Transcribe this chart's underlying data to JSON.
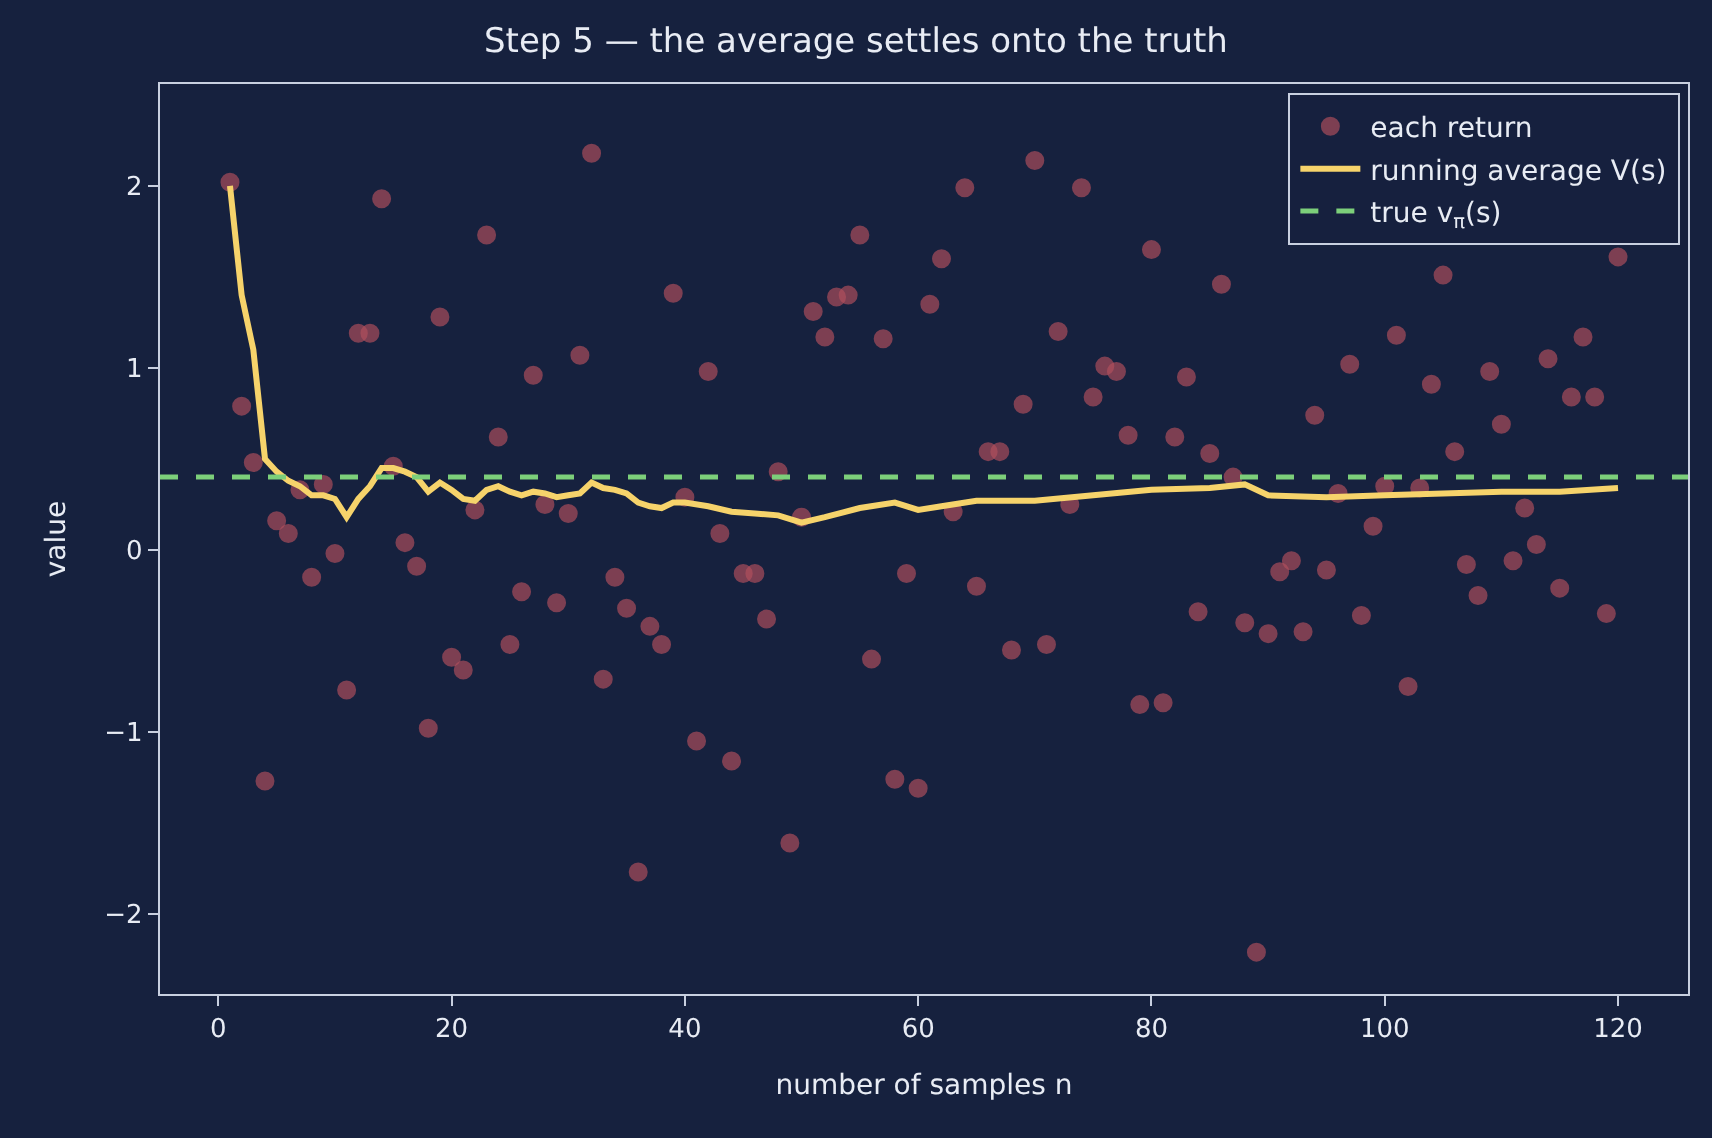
{
  "chart_data": {
    "type": "scatter",
    "title": "Step 5 — the average settles onto the truth",
    "xlabel": "number of samples n",
    "ylabel": "value",
    "xlim": [
      -5,
      126
    ],
    "xticks": [
      0,
      20,
      40,
      60,
      80,
      100,
      120
    ],
    "ylim": [
      -2.44,
      2.56
    ],
    "yticks": [
      {
        "value": -2,
        "label": "−2"
      },
      {
        "value": -1,
        "label": "−1"
      },
      0,
      1,
      2
    ],
    "grid": false,
    "legend": "top right",
    "series": [
      {
        "name": "each return",
        "marker": "circle",
        "color": "#b4505e",
        "x": [
          1,
          2,
          3,
          4,
          5,
          6,
          7,
          8,
          9,
          10,
          11,
          12,
          13,
          14,
          15,
          16,
          17,
          18,
          19,
          20,
          21,
          22,
          23,
          24,
          25,
          26,
          27,
          28,
          29,
          30,
          31,
          32,
          33,
          34,
          35,
          36,
          37,
          38,
          39,
          40,
          41,
          42,
          43,
          44,
          45,
          46,
          47,
          48,
          49,
          50,
          51,
          52,
          53,
          54,
          55,
          56,
          57,
          58,
          59,
          60,
          61,
          62,
          63,
          64,
          65,
          66,
          67,
          68,
          69,
          70,
          71,
          72,
          73,
          74,
          75,
          76,
          77,
          78,
          79,
          80,
          81,
          82,
          83,
          84,
          85,
          86,
          87,
          88,
          89,
          90,
          91,
          92,
          93,
          94,
          95,
          96,
          97,
          98,
          99,
          100,
          101,
          102,
          103,
          104,
          105,
          106,
          107,
          108,
          109,
          110,
          111,
          112,
          113,
          114,
          115,
          116,
          117,
          118,
          119,
          120
        ],
        "values": [
          2.02,
          0.79,
          0.48,
          -1.27,
          0.16,
          0.09,
          0.33,
          -0.15,
          0.36,
          -0.02,
          -0.77,
          1.19,
          1.19,
          1.93,
          0.46,
          0.04,
          -0.09,
          -0.98,
          1.28,
          -0.59,
          -0.66,
          0.22,
          1.73,
          0.62,
          -0.52,
          -0.23,
          0.96,
          0.25,
          -0.29,
          0.2,
          1.07,
          2.18,
          -0.71,
          -0.15,
          -0.32,
          -1.77,
          -0.42,
          -0.52,
          1.41,
          0.29,
          -1.05,
          0.98,
          0.09,
          -1.16,
          -0.13,
          -0.13,
          -0.38,
          0.43,
          -1.61,
          0.18,
          1.31,
          1.17,
          1.39,
          1.4,
          1.73,
          -0.6,
          1.16,
          -1.26,
          -0.13,
          -1.31,
          1.35,
          1.6,
          0.21,
          1.99,
          -0.2,
          0.54,
          0.54,
          -0.55,
          0.8,
          2.14,
          -0.52,
          1.2,
          0.25,
          1.99,
          0.84,
          1.01,
          0.98,
          0.63,
          -0.85,
          1.65,
          -0.84,
          0.62,
          0.95,
          -0.34,
          0.53,
          1.46,
          0.4,
          -0.4,
          -2.21,
          -0.46,
          -0.12,
          -0.06,
          -0.45,
          0.74,
          -0.11,
          0.31,
          1.02,
          -0.36,
          0.13,
          0.35,
          1.18,
          -0.75,
          0.34,
          0.91,
          1.51,
          0.54,
          -0.08,
          -0.25,
          0.98,
          0.69,
          -0.06,
          0.23,
          0.03,
          1.05,
          -0.21,
          0.84,
          1.17,
          0.84,
          -0.35,
          1.61
        ]
      },
      {
        "name": "running average V(s)",
        "type": "line",
        "marker": "none",
        "color": "#f6d36b",
        "x": [
          1,
          2,
          3,
          4,
          5,
          6,
          7,
          8,
          9,
          10,
          11,
          12,
          13,
          14,
          15,
          16,
          17,
          18,
          19,
          20,
          21,
          22,
          23,
          24,
          25,
          26,
          27,
          28,
          29,
          30,
          31,
          32,
          33,
          34,
          35,
          36,
          37,
          38,
          39,
          40,
          42,
          44,
          46,
          48,
          50,
          52,
          55,
          58,
          60,
          62,
          65,
          70,
          75,
          80,
          85,
          88,
          90,
          95,
          100,
          105,
          110,
          115,
          120
        ],
        "values": [
          2.0,
          1.4,
          1.1,
          0.5,
          0.43,
          0.38,
          0.35,
          0.3,
          0.3,
          0.28,
          0.18,
          0.28,
          0.35,
          0.45,
          0.45,
          0.43,
          0.4,
          0.32,
          0.37,
          0.33,
          0.28,
          0.27,
          0.33,
          0.35,
          0.32,
          0.3,
          0.32,
          0.31,
          0.29,
          0.3,
          0.31,
          0.37,
          0.34,
          0.33,
          0.31,
          0.26,
          0.24,
          0.23,
          0.26,
          0.26,
          0.24,
          0.21,
          0.2,
          0.19,
          0.15,
          0.18,
          0.23,
          0.26,
          0.22,
          0.24,
          0.27,
          0.27,
          0.3,
          0.33,
          0.34,
          0.36,
          0.3,
          0.29,
          0.3,
          0.31,
          0.32,
          0.32,
          0.34
        ]
      }
    ],
    "ref_lines": [
      {
        "axis": "y",
        "value": 0.4,
        "label": "true v$_{π}$(s)",
        "color": "#7ccf7a",
        "line_style": "dashed"
      }
    ]
  }
}
